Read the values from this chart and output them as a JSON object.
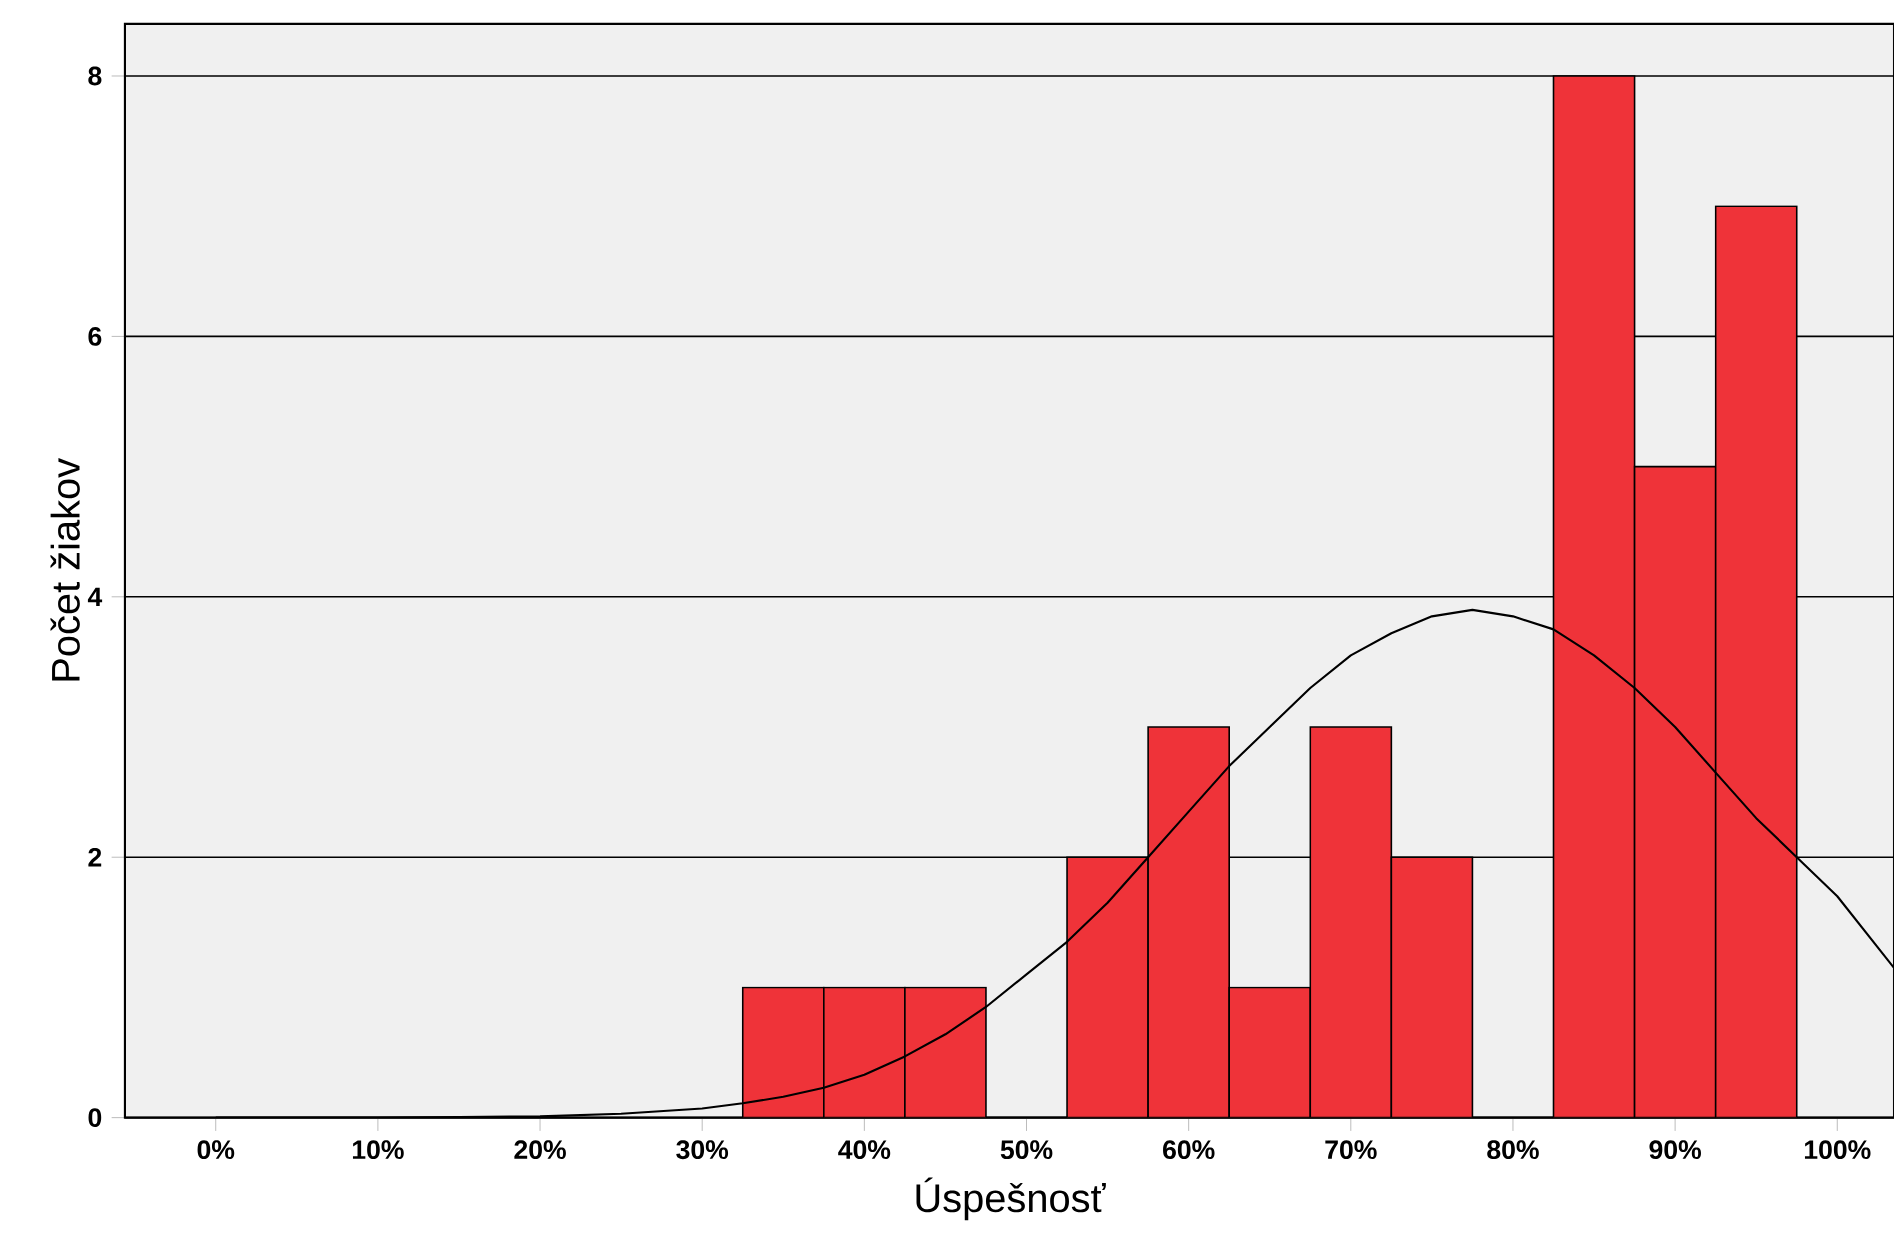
{
  "chart_data": {
    "type": "histogram",
    "xlabel": "Úspešnosť",
    "ylabel": "Počet žiakov",
    "bins": [
      32.5,
      37.5,
      42.5,
      47.5,
      52.5,
      57.5,
      62.5,
      67.5,
      72.5,
      77.5,
      82.5,
      87.5,
      92.5,
      97.5
    ],
    "values": [
      1,
      1,
      1,
      0,
      2,
      3,
      1,
      3,
      2,
      0,
      8,
      5,
      7
    ],
    "color": "#ef3339",
    "series": [
      {
        "type": "line",
        "color": "#000000",
        "x": [
          0,
          10,
          15,
          20,
          25,
          30,
          32.5,
          35,
          37.5,
          40,
          42.5,
          45,
          47.5,
          50,
          52.5,
          55,
          57.5,
          60,
          62.5,
          65,
          67.5,
          70,
          72.5,
          75,
          77.5,
          80,
          82.5,
          85,
          87.5,
          90,
          92.5,
          95,
          97.5,
          100,
          103.5
        ],
        "values": [
          0,
          0,
          0.005,
          0.01,
          0.03,
          0.07,
          0.11,
          0.16,
          0.23,
          0.33,
          0.47,
          0.64,
          0.85,
          1.1,
          1.35,
          1.65,
          2.0,
          2.35,
          2.7,
          3.0,
          3.3,
          3.55,
          3.72,
          3.85,
          3.9,
          3.85,
          3.75,
          3.55,
          3.3,
          3.0,
          2.65,
          2.3,
          2.0,
          1.7,
          1.15
        ]
      }
    ],
    "xlim": [
      -5.6,
      103.5
    ],
    "ylim": [
      0,
      8.4
    ],
    "xticks": [
      {
        "value": 0,
        "label": "0%"
      },
      {
        "value": 10,
        "label": "10%"
      },
      {
        "value": 20,
        "label": "20%"
      },
      {
        "value": 30,
        "label": "30%"
      },
      {
        "value": 40,
        "label": "40%"
      },
      {
        "value": 50,
        "label": "50%"
      },
      {
        "value": 60,
        "label": "60%"
      },
      {
        "value": 70,
        "label": "70%"
      },
      {
        "value": 80,
        "label": "80%"
      },
      {
        "value": 90,
        "label": "90%"
      },
      {
        "value": 100,
        "label": "100%"
      }
    ],
    "yticks": [
      0,
      2,
      4,
      6,
      8
    ],
    "grid": "y"
  }
}
